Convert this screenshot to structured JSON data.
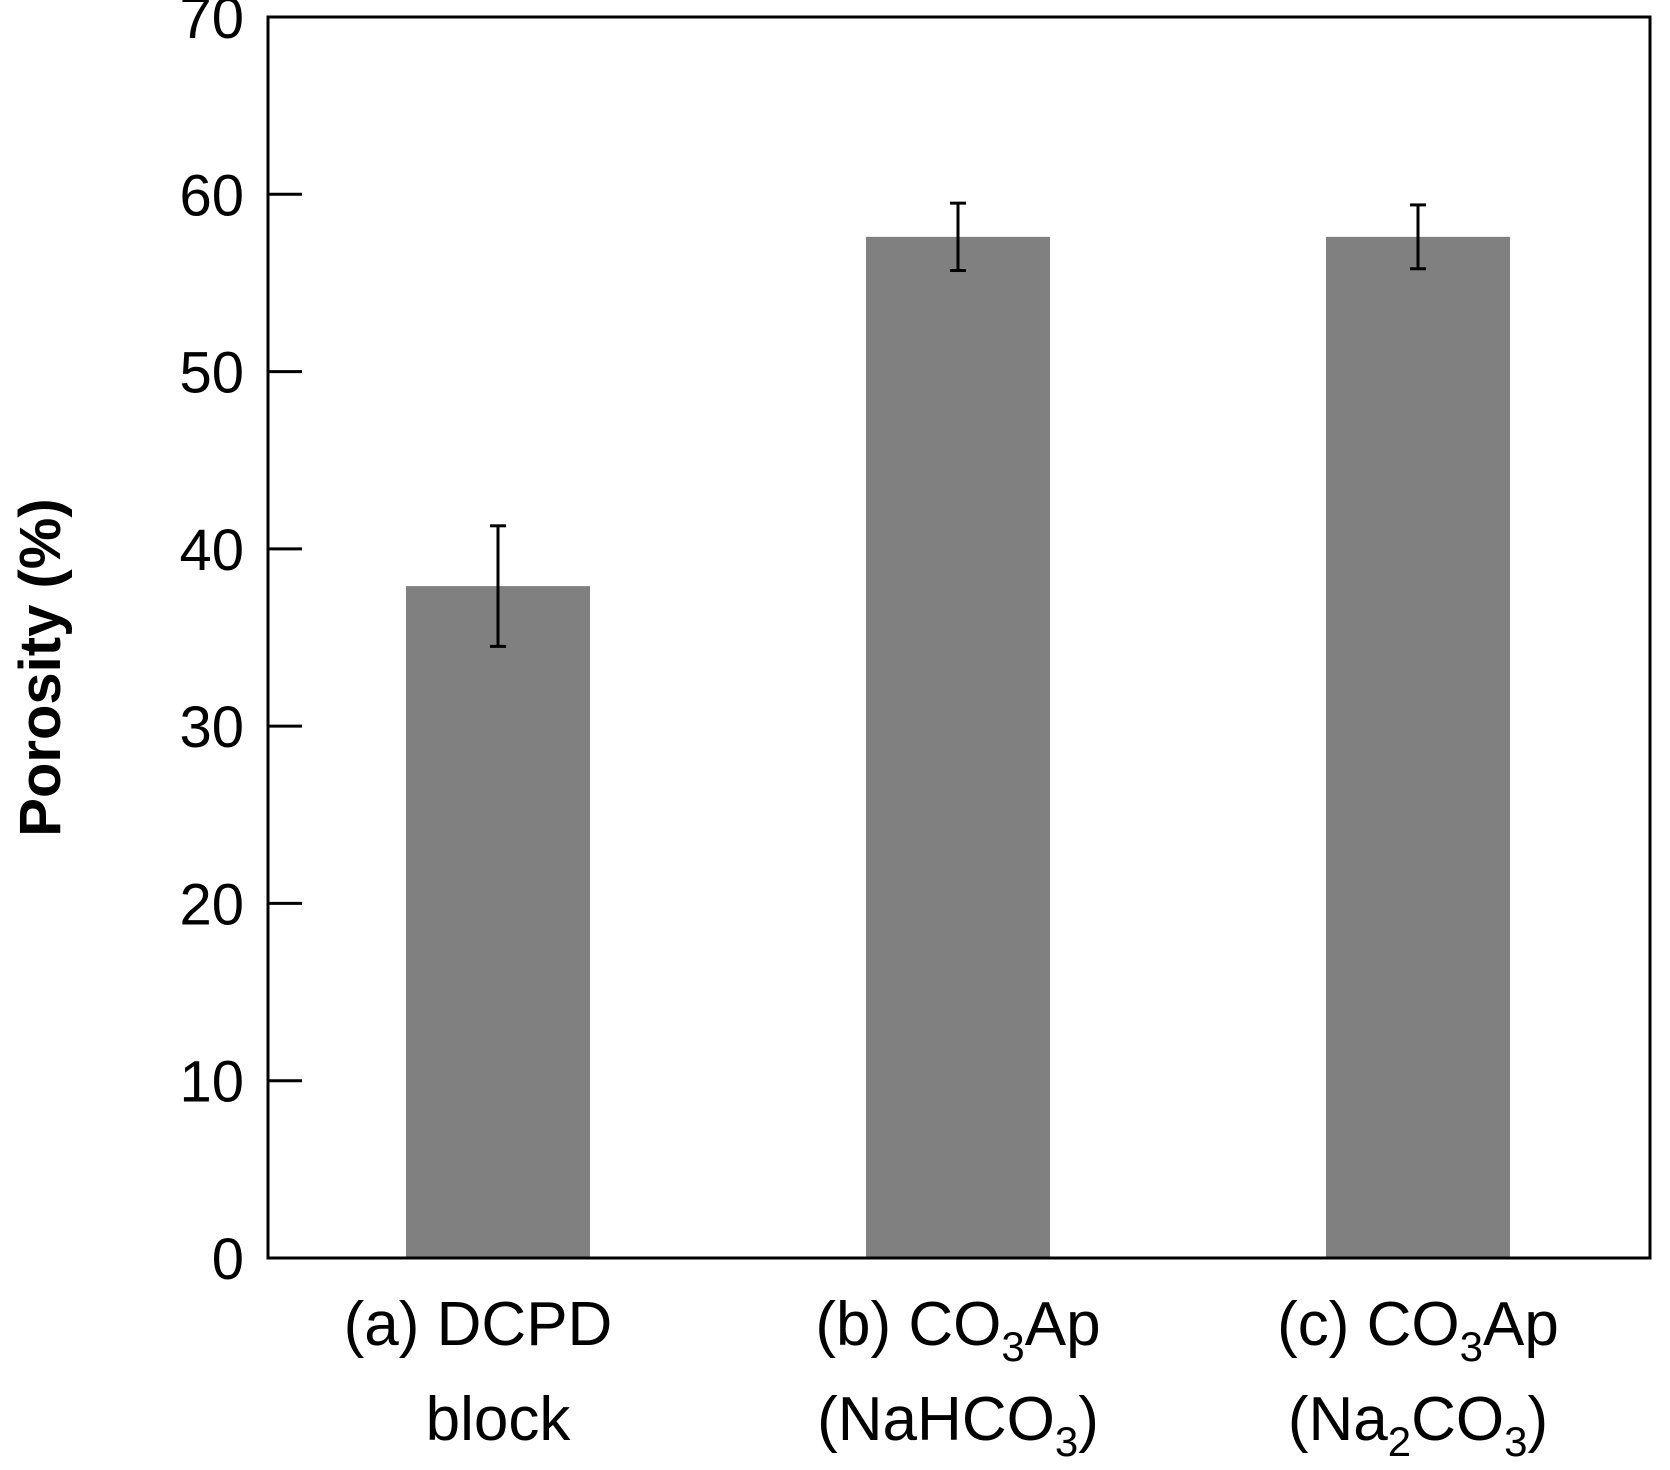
{
  "chart_data": {
    "type": "bar",
    "title": "",
    "xlabel": "",
    "ylabel": "Porosity (%)",
    "ylim": [
      0,
      70
    ],
    "yticks": [
      "0",
      "10",
      "20",
      "30",
      "40",
      "50",
      "60",
      "70"
    ],
    "categories": [
      {
        "line1": [
          {
            "t": "(a)  DCPD"
          }
        ],
        "line2": [
          {
            "t": "block"
          }
        ]
      },
      {
        "line1": [
          {
            "t": "(b) CO"
          },
          {
            "t": "3",
            "sub": true
          },
          {
            "t": "Ap"
          }
        ],
        "line2": [
          {
            "t": "(NaHCO"
          },
          {
            "t": "3",
            "sub": true
          },
          {
            "t": ")"
          }
        ]
      },
      {
        "line1": [
          {
            "t": "(c) CO"
          },
          {
            "t": "3",
            "sub": true
          },
          {
            "t": "Ap"
          }
        ],
        "line2": [
          {
            "t": "(Na"
          },
          {
            "t": "2",
            "sub": true
          },
          {
            "t": "CO"
          },
          {
            "t": "3",
            "sub": true
          },
          {
            "t": ")"
          }
        ]
      }
    ],
    "values": [
      37.9,
      57.6,
      57.6
    ],
    "errors": [
      3.4,
      1.9,
      1.8
    ],
    "bar_color": "#808080",
    "grid": false
  }
}
